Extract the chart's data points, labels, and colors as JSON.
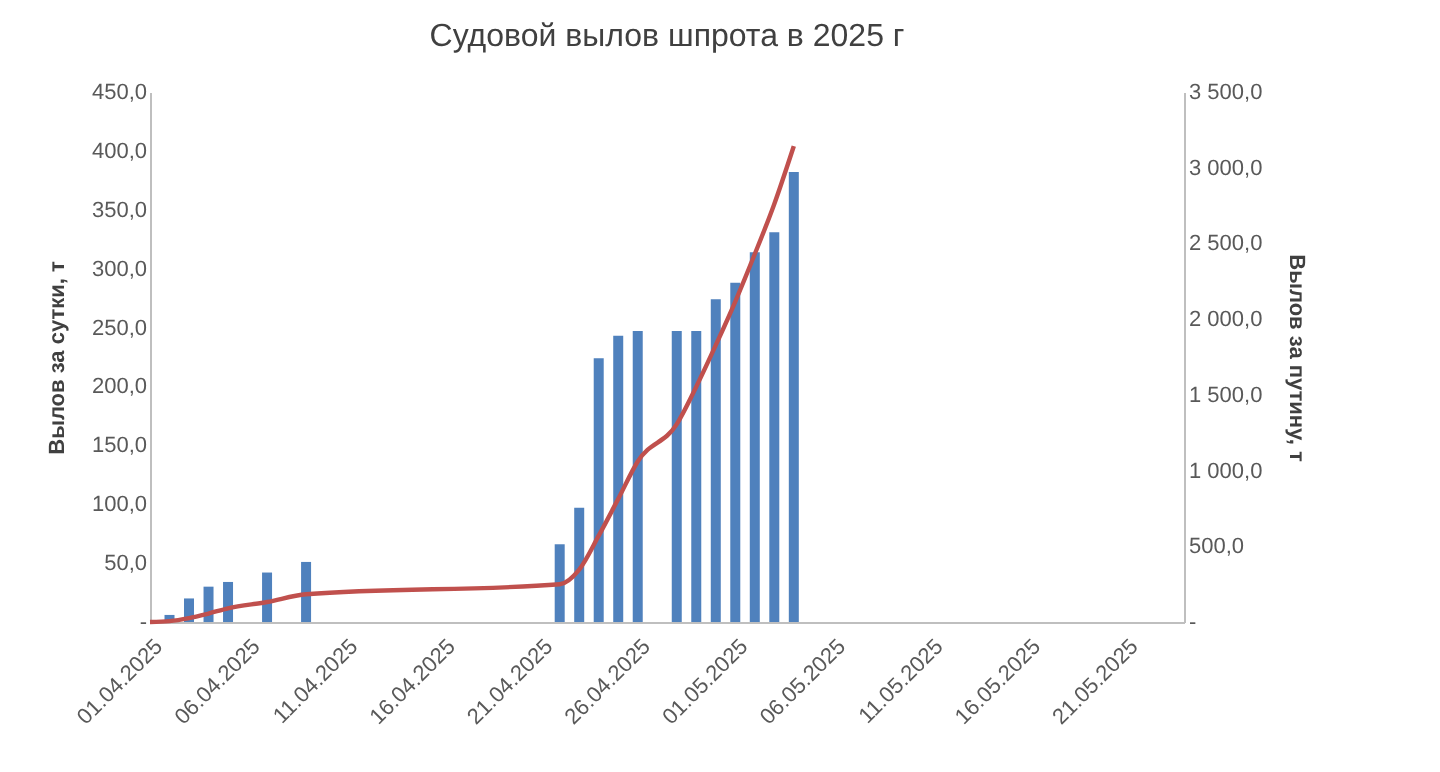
{
  "chart_data": {
    "type": "bar",
    "title": "Судовой вылов шпрота в 2025 г",
    "ylabel": "Вылов за сутки,  т",
    "y2label": "Вылов за путину, т",
    "xlim": [
      "2025-04-01",
      "2025-05-24"
    ],
    "xticks": [
      {
        "value": "2025-04-01",
        "label": "01.04.2025"
      },
      {
        "value": "2025-04-06",
        "label": "06.04.2025"
      },
      {
        "value": "2025-04-11",
        "label": "11.04.2025"
      },
      {
        "value": "2025-04-16",
        "label": "16.04.2025"
      },
      {
        "value": "2025-04-21",
        "label": "21.04.2025"
      },
      {
        "value": "2025-04-26",
        "label": "26.04.2025"
      },
      {
        "value": "2025-05-01",
        "label": "01.05.2025"
      },
      {
        "value": "2025-05-06",
        "label": "06.05.2025"
      },
      {
        "value": "2025-05-11",
        "label": "11.05.2025"
      },
      {
        "value": "2025-05-16",
        "label": "16.05.2025"
      },
      {
        "value": "2025-05-21",
        "label": "21.05.2025"
      }
    ],
    "ylim": [
      0,
      450
    ],
    "yticks": [
      {
        "value": 0,
        "label": "-"
      },
      {
        "value": 50,
        "label": "50,0"
      },
      {
        "value": 100,
        "label": "100,0"
      },
      {
        "value": 150,
        "label": "150,0"
      },
      {
        "value": 200,
        "label": "200,0"
      },
      {
        "value": 250,
        "label": "250,0"
      },
      {
        "value": 300,
        "label": "300,0"
      },
      {
        "value": 350,
        "label": "350,0"
      },
      {
        "value": 400,
        "label": "400,0"
      },
      {
        "value": 450,
        "label": "450,0"
      }
    ],
    "y2lim": [
      0,
      3500
    ],
    "y2ticks": [
      {
        "value": 0,
        "label": "-"
      },
      {
        "value": 500,
        "label": "500,0"
      },
      {
        "value": 1000,
        "label": "1 000,0"
      },
      {
        "value": 1500,
        "label": "1 500,0"
      },
      {
        "value": 2000,
        "label": "2 000,0"
      },
      {
        "value": 2500,
        "label": "2 500,0"
      },
      {
        "value": 3000,
        "label": "3 000,0"
      },
      {
        "value": 3500,
        "label": "3 500,0"
      }
    ],
    "grid": false,
    "series": [
      {
        "color": "#4f81bd",
        "x": [
          "2025-04-02",
          "2025-04-03",
          "2025-04-04",
          "2025-04-05",
          "2025-04-07",
          "2025-04-09",
          "2025-04-22",
          "2025-04-23",
          "2025-04-24",
          "2025-04-25",
          "2025-04-26",
          "2025-04-28",
          "2025-04-29",
          "2025-04-30",
          "2025-05-01",
          "2025-05-02",
          "2025-05-03",
          "2025-05-04"
        ],
        "values": [
          6,
          20,
          30,
          34,
          42,
          51,
          66,
          97,
          224,
          243,
          247,
          247,
          247,
          274,
          288,
          314,
          331,
          382
        ]
      },
      {
        "type": "line",
        "axis": "y2",
        "color": "#c0504d",
        "marker": "none",
        "x": [
          "2025-04-01",
          "2025-04-02",
          "2025-04-03",
          "2025-04-04",
          "2025-04-05",
          "2025-04-07",
          "2025-04-09",
          "2025-04-22",
          "2025-04-23",
          "2025-04-24",
          "2025-04-25",
          "2025-04-26",
          "2025-04-28",
          "2025-04-29",
          "2025-04-30",
          "2025-05-01",
          "2025-05-02",
          "2025-05-03",
          "2025-05-04"
        ],
        "values": [
          0,
          6,
          26,
          56,
          90,
          132,
          183,
          249,
          346,
          570,
          813,
          1060,
          1307,
          1554,
          1828,
          2116,
          2430,
          2761,
          3143
        ]
      }
    ]
  }
}
